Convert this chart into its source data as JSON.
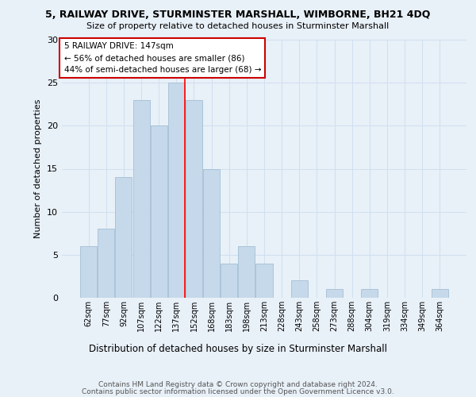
{
  "title1": "5, RAILWAY DRIVE, STURMINSTER MARSHALL, WIMBORNE, BH21 4DQ",
  "title2": "Size of property relative to detached houses in Sturminster Marshall",
  "xlabel": "Distribution of detached houses by size in Sturminster Marshall",
  "ylabel": "Number of detached properties",
  "categories": [
    "62sqm",
    "77sqm",
    "92sqm",
    "107sqm",
    "122sqm",
    "137sqm",
    "152sqm",
    "168sqm",
    "183sqm",
    "198sqm",
    "213sqm",
    "228sqm",
    "243sqm",
    "258sqm",
    "273sqm",
    "288sqm",
    "304sqm",
    "319sqm",
    "334sqm",
    "349sqm",
    "364sqm"
  ],
  "values": [
    6,
    8,
    14,
    23,
    20,
    25,
    23,
    15,
    4,
    6,
    4,
    0,
    2,
    0,
    1,
    0,
    1,
    0,
    0,
    0,
    1
  ],
  "bar_color": "#c6d9ea",
  "bar_edge_color": "#9ab8d0",
  "grid_color": "#d0dff0",
  "red_line_x": 5.5,
  "annotation_text1": "5 RAILWAY DRIVE: 147sqm",
  "annotation_text2": "← 56% of detached houses are smaller (86)",
  "annotation_text3": "44% of semi-detached houses are larger (68) →",
  "annotation_box_color": "#ffffff",
  "annotation_box_edge_color": "#cc0000",
  "ylim": [
    0,
    30
  ],
  "yticks": [
    0,
    5,
    10,
    15,
    20,
    25,
    30
  ],
  "footer1": "Contains HM Land Registry data © Crown copyright and database right 2024.",
  "footer2": "Contains public sector information licensed under the Open Government Licence v3.0.",
  "background_color": "#e8f0f8",
  "bar_width": 0.95,
  "title1_fontsize": 9,
  "title2_fontsize": 8,
  "ylabel_fontsize": 8,
  "xlabel_fontsize": 8.5,
  "tick_fontsize": 7,
  "ytick_fontsize": 8,
  "ann_fontsize": 7.5,
  "footer_fontsize": 6.5
}
